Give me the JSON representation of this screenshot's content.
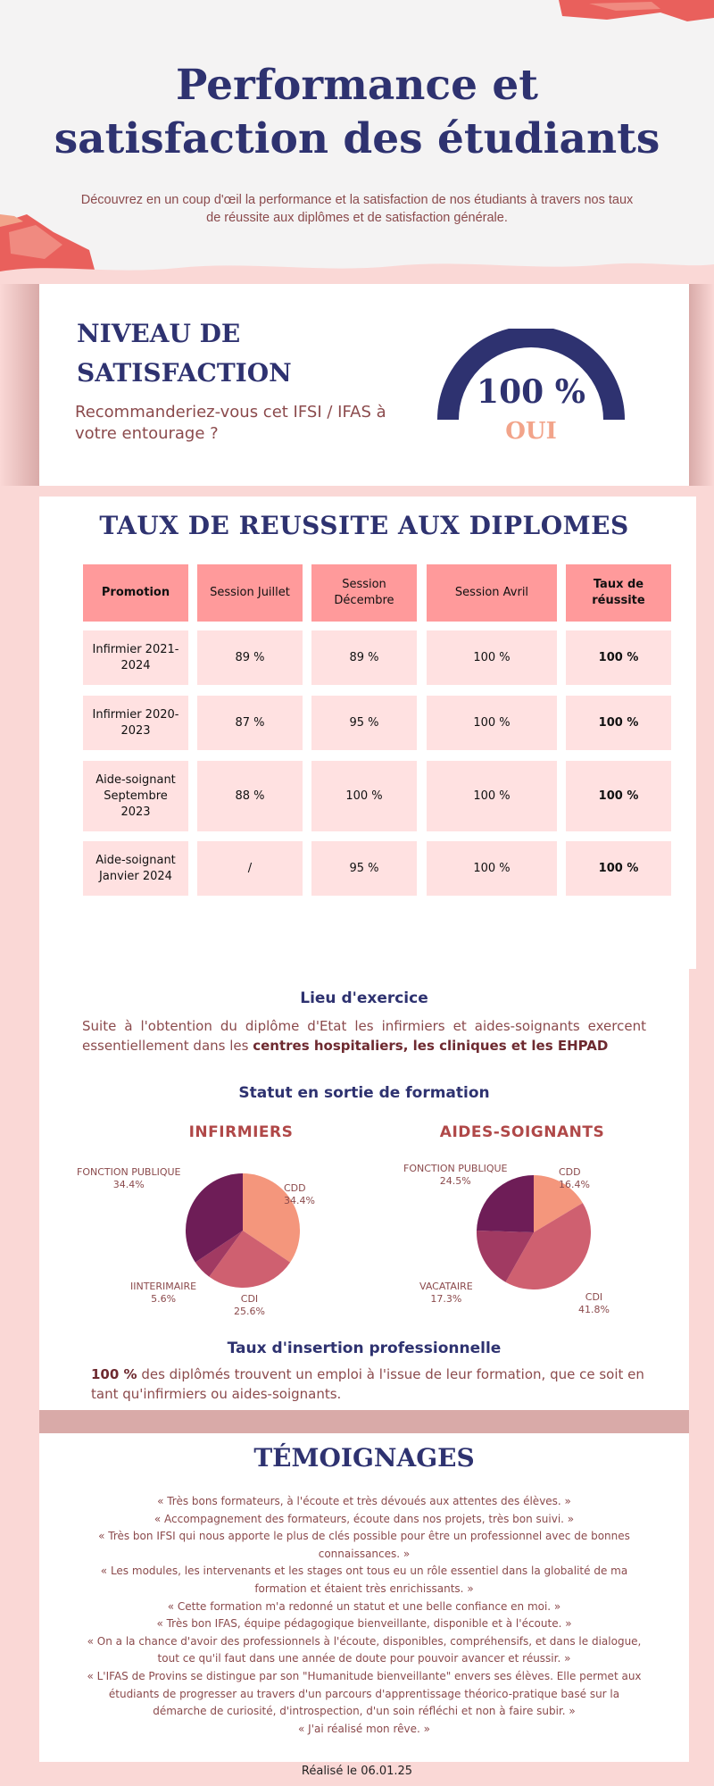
{
  "header": {
    "title": "Performance et satisfaction des étudiants",
    "subtitle": "Découvrez en un coup d'œil la performance et la satisfaction de nos étudiants à travers nos taux de réussite aux diplômes et de satisfaction générale."
  },
  "satisfaction": {
    "title": "NIVEAU DE SATISFACTION",
    "question": "Recommanderiez-vous cet IFSI / IFAS à votre entourage ?",
    "value": "100 %",
    "value_label": "OUI",
    "gauge_fraction": 1.0
  },
  "results": {
    "title": "TAUX DE REUSSITE AUX DIPLOMES",
    "headers": [
      "Promotion",
      "Session Juillet",
      "Session Décembre",
      "Session Avril",
      "Taux de réussite"
    ],
    "rows": [
      [
        "Infirmier 2021-2024",
        "89 %",
        "89 %",
        "100 %",
        "100 %"
      ],
      [
        "Infirmier 2020-2023",
        "87 %",
        "95 %",
        "100 %",
        "100 %"
      ],
      [
        "Aide-soignant Septembre 2023",
        "88 %",
        "100 %",
        "100 %",
        "100 %"
      ],
      [
        "Aide-soignant Janvier 2024",
        "/",
        "95 %",
        "100 %",
        "100 %"
      ]
    ]
  },
  "insertion": {
    "lieu_heading": "Lieu d'exercice",
    "lieu_text": "Suite à l'obtention du diplôme d'Etat les infirmiers et aides-soignants exercent essentiellement dans les ",
    "lieu_bold": "centres hospitaliers, les cliniques et les EHPAD",
    "statut_heading": "Statut en sortie de formation",
    "insertion_heading": "Taux d'insertion professionnelle",
    "insertion_bold": "100 %",
    "insertion_text": " des diplômés trouvent un emploi à l'issue de leur formation, que ce soit en tant qu'infirmiers ou aides-soignants."
  },
  "chart_data": [
    {
      "type": "pie",
      "title": "INFIRMIERS",
      "slices": [
        {
          "label": "CDD",
          "value": 34.4,
          "display": "34.4%",
          "color": "#f4967c"
        },
        {
          "label": "CDI",
          "value": 25.6,
          "display": "25.6%",
          "color": "#cf6070"
        },
        {
          "label": "IINTERIMAIRE",
          "value": 5.6,
          "display": "5.6%",
          "color": "#a13a62"
        },
        {
          "label": "FONCTION PUBLIQUE",
          "value": 34.4,
          "display": "34.4%",
          "color": "#6e1d57"
        }
      ]
    },
    {
      "type": "pie",
      "title": "AIDES-SOIGNANTS",
      "slices": [
        {
          "label": "CDD",
          "value": 16.4,
          "display": "16.4%",
          "color": "#f4967c"
        },
        {
          "label": "CDI",
          "value": 41.8,
          "display": "41.8%",
          "color": "#cf6070"
        },
        {
          "label": "VACATAIRE",
          "value": 17.3,
          "display": "17.3%",
          "color": "#a13a62"
        },
        {
          "label": "FONCTION PUBLIQUE",
          "value": 24.5,
          "display": "24.5%",
          "color": "#6e1d57"
        }
      ]
    }
  ],
  "testimonials": {
    "title": "TÉMOIGNAGES",
    "items": [
      "« Très bons formateurs, à l'écoute et très dévoués aux attentes des élèves. »",
      "« Accompagnement des formateurs, écoute dans nos projets, très bon suivi. »",
      "« Très bon IFSI qui nous apporte le plus de clés possible pour être un professionnel avec de bonnes connaissances. »",
      "« Les modules, les intervenants et les stages ont tous eu un rôle essentiel dans la globalité de ma formation et étaient très enrichissants. »",
      "« Cette formation m'a redonné un statut et une belle confiance en moi. »",
      "« Très bon IFAS, équipe pédagogique bienveillante, disponible et à l'écoute. »",
      "« On a la chance d'avoir des professionnels à l'écoute, disponibles, compréhensifs, et dans le dialogue, tout ce qu'il faut dans une année de doute pour pouvoir avancer et réussir. »",
      "« L'IFAS de Provins se distingue par son \"Humanitude bienveillante\" envers ses élèves. Elle permet aux étudiants de progresser au travers d'un parcours d'apprentissage théorico-pratique basé sur la démarche de curiosité, d'introspection, d'un soin réfléchi et non à faire subir. »",
      "« J'ai réalisé mon rêve. »"
    ]
  },
  "footer": {
    "text": "Réalisé le 06.01.25"
  },
  "colors": {
    "navy": "#2e3270",
    "pink_bg": "#fad8d6",
    "header_cell": "#ff9a9b",
    "body_cell": "#ffe1e1",
    "accent_peach": "#f2a48a",
    "text_brown": "#8b4a4c"
  }
}
